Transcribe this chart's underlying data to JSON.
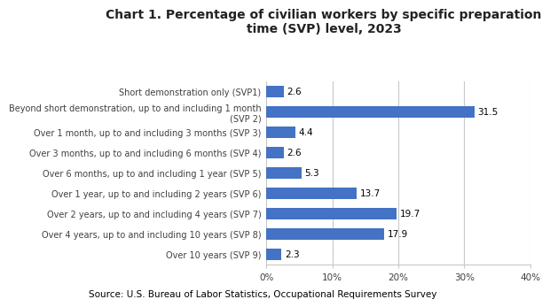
{
  "title": "Chart 1. Percentage of civilian workers by specific preparation\ntime (SVP) level, 2023",
  "categories": [
    "Short demonstration only (SVP1)",
    "Beyond short demonstration, up to and including 1 month\n(SVP 2)",
    "Over 1 month, up to and including 3 months (SVP 3)",
    "Over 3 months, up to and including 6 months (SVP 4)",
    "Over 6 months, up to and including 1 year (SVP 5)",
    "Over 1 year, up to and including 2 years (SVP 6)",
    "Over 2 years, up to and including 4 years (SVP 7)",
    "Over 4 years, up to and including 10 years (SVP 8)",
    "Over 10 years (SVP 9)"
  ],
  "values": [
    2.6,
    31.5,
    4.4,
    2.6,
    5.3,
    13.7,
    19.7,
    17.9,
    2.3
  ],
  "bar_color": "#4472C4",
  "xlim": [
    0,
    40
  ],
  "xticks": [
    0,
    10,
    20,
    30,
    40
  ],
  "xtick_labels": [
    "0%",
    "10%",
    "20%",
    "30%",
    "40%"
  ],
  "source": "Source: U.S. Bureau of Labor Statistics, Occupational Requirements Survey",
  "title_fontsize": 10,
  "label_fontsize": 7,
  "value_fontsize": 7.5,
  "source_fontsize": 7.5,
  "tick_fontsize": 7.5,
  "background_color": "#ffffff",
  "grid_color": "#c8c8c8",
  "text_color": "#404040"
}
